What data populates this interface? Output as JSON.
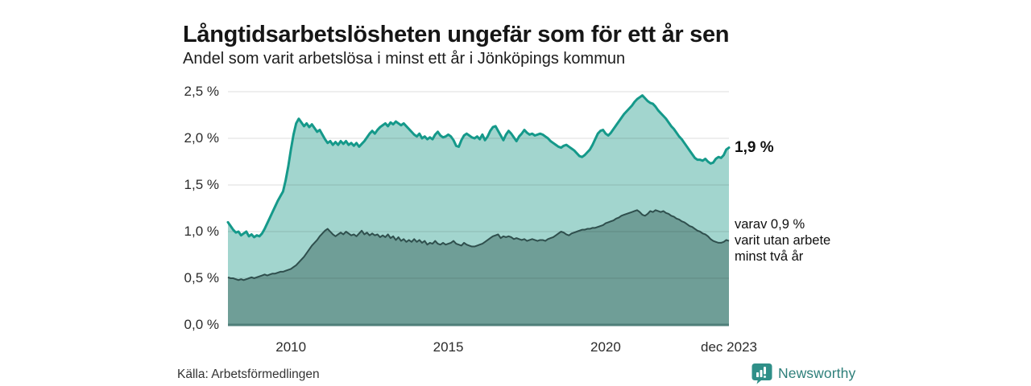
{
  "header": {
    "title": "Långtidsarbetslösheten ungefär som för ett år sen",
    "subtitle": "Andel som varit arbetslösa i minst ett år i Jönköpings kommun"
  },
  "chart_data": {
    "type": "area",
    "title": "Långtidsarbetslösheten ungefär som för ett år sen",
    "subtitle": "Andel som varit arbetslösa i minst ett år i Jönköpings kommun",
    "x_interval": "monthly",
    "x_range": {
      "start_year": 2008.0,
      "end_year": 2023.9167
    },
    "ylim": [
      0,
      2.5
    ],
    "grid": true,
    "colors": {
      "total_line": "#15998a",
      "total_fill": "#a2d5ce",
      "two_year_line": "#2f4f4d",
      "two_year_fill": "#6f9e97",
      "baseline": "#4f7f79",
      "gridline": "rgba(0,0,0,0.13)"
    },
    "y_ticks": {
      "values": [
        0,
        0.5,
        1.0,
        1.5,
        2.0,
        2.5
      ],
      "labels": [
        "0,0 %",
        "0,5 %",
        "1,0 %",
        "1,5 %",
        "2,0 %",
        "2,5 %"
      ]
    },
    "x_ticks": {
      "years": [
        2010,
        2015,
        2020,
        2023.9167
      ],
      "labels": [
        "2010",
        "2015",
        "2020",
        "dec 2023"
      ]
    },
    "series": [
      {
        "name": "Andel arbetslösa minst ett år",
        "end_label": "1,9 %",
        "values": [
          1.1,
          1.06,
          1.02,
          0.99,
          1.0,
          0.96,
          0.98,
          1.0,
          0.95,
          0.97,
          0.94,
          0.96,
          0.95,
          0.98,
          1.03,
          1.09,
          1.15,
          1.21,
          1.27,
          1.33,
          1.38,
          1.43,
          1.55,
          1.7,
          1.88,
          2.04,
          2.16,
          2.21,
          2.17,
          2.13,
          2.16,
          2.12,
          2.15,
          2.11,
          2.07,
          2.09,
          2.04,
          1.99,
          1.95,
          1.97,
          1.93,
          1.96,
          1.93,
          1.97,
          1.94,
          1.97,
          1.93,
          1.95,
          1.92,
          1.95,
          1.91,
          1.94,
          1.97,
          2.01,
          2.05,
          2.08,
          2.05,
          2.09,
          2.12,
          2.14,
          2.16,
          2.13,
          2.17,
          2.15,
          2.18,
          2.16,
          2.14,
          2.16,
          2.13,
          2.1,
          2.07,
          2.04,
          2.02,
          2.05,
          2.0,
          2.02,
          1.99,
          2.01,
          1.99,
          2.04,
          2.07,
          2.03,
          2.01,
          2.02,
          2.04,
          2.02,
          1.98,
          1.92,
          1.91,
          1.98,
          2.03,
          2.05,
          2.03,
          2.01,
          2.0,
          2.02,
          1.99,
          2.04,
          1.98,
          2.02,
          2.08,
          2.12,
          2.13,
          2.08,
          2.03,
          1.98,
          2.04,
          2.08,
          2.05,
          2.01,
          1.97,
          2.02,
          2.05,
          2.09,
          2.06,
          2.04,
          2.05,
          2.03,
          2.04,
          2.05,
          2.04,
          2.02,
          2.0,
          1.97,
          1.95,
          1.93,
          1.91,
          1.9,
          1.92,
          1.93,
          1.91,
          1.89,
          1.87,
          1.84,
          1.81,
          1.8,
          1.82,
          1.85,
          1.88,
          1.93,
          1.99,
          2.05,
          2.08,
          2.09,
          2.05,
          2.03,
          2.06,
          2.1,
          2.14,
          2.18,
          2.22,
          2.26,
          2.29,
          2.32,
          2.35,
          2.39,
          2.42,
          2.44,
          2.46,
          2.43,
          2.4,
          2.38,
          2.37,
          2.34,
          2.3,
          2.27,
          2.24,
          2.21,
          2.17,
          2.13,
          2.1,
          2.06,
          2.02,
          1.99,
          1.95,
          1.91,
          1.87,
          1.83,
          1.79,
          1.77,
          1.77,
          1.76,
          1.78,
          1.75,
          1.73,
          1.74,
          1.78,
          1.8,
          1.79,
          1.82,
          1.88,
          1.9
        ]
      },
      {
        "name": "varav utan arbete minst två år",
        "end_label": "varav 0,9 % varit utan arbete minst två år",
        "values": [
          0.51,
          0.5,
          0.5,
          0.49,
          0.48,
          0.49,
          0.48,
          0.49,
          0.5,
          0.51,
          0.5,
          0.51,
          0.52,
          0.53,
          0.54,
          0.53,
          0.54,
          0.55,
          0.55,
          0.56,
          0.57,
          0.57,
          0.58,
          0.59,
          0.6,
          0.62,
          0.64,
          0.67,
          0.7,
          0.73,
          0.77,
          0.81,
          0.85,
          0.88,
          0.91,
          0.95,
          0.98,
          1.01,
          1.03,
          1.0,
          0.97,
          0.95,
          0.97,
          0.99,
          0.97,
          1.0,
          0.98,
          0.96,
          0.97,
          0.95,
          0.98,
          1.01,
          0.97,
          0.99,
          0.96,
          0.98,
          0.96,
          0.97,
          0.94,
          0.96,
          0.94,
          0.97,
          0.93,
          0.95,
          0.91,
          0.94,
          0.9,
          0.92,
          0.89,
          0.91,
          0.89,
          0.92,
          0.89,
          0.91,
          0.88,
          0.9,
          0.86,
          0.88,
          0.87,
          0.9,
          0.87,
          0.86,
          0.88,
          0.86,
          0.87,
          0.88,
          0.9,
          0.87,
          0.86,
          0.85,
          0.88,
          0.86,
          0.85,
          0.84,
          0.84,
          0.85,
          0.86,
          0.87,
          0.89,
          0.91,
          0.93,
          0.95,
          0.96,
          0.97,
          0.93,
          0.95,
          0.94,
          0.95,
          0.94,
          0.92,
          0.93,
          0.92,
          0.91,
          0.92,
          0.9,
          0.91,
          0.92,
          0.91,
          0.9,
          0.91,
          0.91,
          0.9,
          0.92,
          0.93,
          0.94,
          0.96,
          0.98,
          1.0,
          0.99,
          0.97,
          0.96,
          0.98,
          0.99,
          1.0,
          1.01,
          1.02,
          1.02,
          1.03,
          1.03,
          1.04,
          1.04,
          1.05,
          1.06,
          1.07,
          1.09,
          1.1,
          1.11,
          1.12,
          1.14,
          1.15,
          1.17,
          1.18,
          1.19,
          1.2,
          1.21,
          1.22,
          1.23,
          1.21,
          1.18,
          1.17,
          1.19,
          1.22,
          1.21,
          1.23,
          1.22,
          1.21,
          1.22,
          1.2,
          1.19,
          1.17,
          1.16,
          1.14,
          1.13,
          1.11,
          1.1,
          1.08,
          1.06,
          1.05,
          1.03,
          1.01,
          1.0,
          0.98,
          0.97,
          0.95,
          0.92,
          0.9,
          0.89,
          0.88,
          0.88,
          0.89,
          0.91,
          0.9
        ]
      }
    ]
  },
  "annotations": {
    "end_value_total": "1,9 %",
    "end_note_lines": [
      "varav 0,9 %",
      "varit utan arbete",
      "minst två år"
    ]
  },
  "footer": {
    "source": "Källa: Arbetsförmedlingen",
    "brand": "Newsworthy"
  },
  "icons": {
    "brand_logo": "bar-chart-speech-bubble"
  }
}
